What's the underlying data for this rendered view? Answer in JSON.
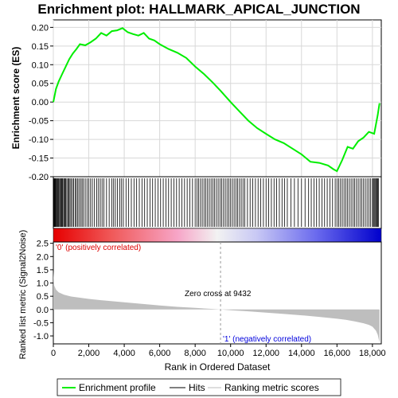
{
  "chart_data": {
    "type": "line",
    "title": "Enrichment plot: HALLMARK_APICAL_JUNCTION",
    "xlabel": "Rank in Ordered Dataset",
    "xlim": [
      0,
      18500
    ],
    "x_ticks": [
      0,
      2000,
      4000,
      6000,
      8000,
      10000,
      12000,
      14000,
      16000,
      18000
    ],
    "x_tick_labels": [
      "0",
      "2,000",
      "4,000",
      "6,000",
      "8,000",
      "10,000",
      "12,000",
      "14,000",
      "16,000",
      "18,000"
    ],
    "es_panel": {
      "ylabel": "Enrichment score (ES)",
      "ylim": [
        -0.2,
        0.22
      ],
      "y_ticks": [
        -0.2,
        -0.15,
        -0.1,
        -0.05,
        0.0,
        0.05,
        0.1,
        0.15,
        0.2
      ],
      "y_tick_labels": [
        "-0.20",
        "-0.15",
        "-0.10",
        "-0.05",
        "0.00",
        "0.05",
        "0.10",
        "0.15",
        "0.20"
      ],
      "grid": true,
      "series": [
        {
          "name": "Enrichment profile",
          "color": "#00ee00",
          "x": [
            0,
            150,
            300,
            500,
            700,
            900,
            1100,
            1300,
            1500,
            1800,
            2100,
            2400,
            2700,
            3000,
            3300,
            3600,
            3900,
            4200,
            4500,
            4800,
            5100,
            5400,
            5700,
            6000,
            6500,
            7000,
            7500,
            8000,
            8500,
            9000,
            9432,
            10000,
            10500,
            11000,
            11500,
            12000,
            12500,
            13000,
            13500,
            14000,
            14500,
            15000,
            15500,
            15800,
            16000,
            16300,
            16600,
            16900,
            17200,
            17500,
            17800,
            18100,
            18300,
            18400
          ],
          "y": [
            0.0,
            0.035,
            0.055,
            0.075,
            0.095,
            0.115,
            0.13,
            0.142,
            0.155,
            0.152,
            0.16,
            0.17,
            0.185,
            0.178,
            0.19,
            0.192,
            0.198,
            0.187,
            0.182,
            0.178,
            0.185,
            0.17,
            0.165,
            0.155,
            0.142,
            0.132,
            0.118,
            0.095,
            0.075,
            0.052,
            0.03,
            0.0,
            -0.025,
            -0.05,
            -0.07,
            -0.085,
            -0.1,
            -0.11,
            -0.125,
            -0.14,
            -0.16,
            -0.163,
            -0.17,
            -0.18,
            -0.185,
            -0.155,
            -0.12,
            -0.125,
            -0.105,
            -0.095,
            -0.08,
            -0.085,
            -0.035,
            -0.003
          ]
        }
      ]
    },
    "hits_panel": {
      "legend_name": "Hits",
      "hit_positions": [
        30,
        60,
        90,
        120,
        160,
        200,
        240,
        280,
        320,
        370,
        420,
        460,
        500,
        540,
        600,
        650,
        700,
        760,
        820,
        880,
        940,
        1000,
        1080,
        1150,
        1230,
        1300,
        1380,
        1450,
        1540,
        1620,
        1700,
        1800,
        1900,
        2000,
        2100,
        2200,
        2320,
        2450,
        2550,
        2650,
        2750,
        2850,
        3000,
        3150,
        3300,
        3400,
        3500,
        3620,
        3750,
        3850,
        3950,
        4100,
        4250,
        4400,
        4550,
        4700,
        4850,
        5000,
        5150,
        5300,
        5450,
        5600,
        5750,
        5900,
        6050,
        6200,
        6350,
        6500,
        6650,
        6800,
        6950,
        7100,
        7250,
        7400,
        7550,
        7700,
        7850,
        8000,
        8100,
        8200,
        8300,
        8400,
        8500,
        8600,
        8700,
        8800,
        8900,
        9000,
        9100,
        9200,
        9300,
        9400,
        9500,
        9600,
        9700,
        9800,
        9900,
        10000,
        10100,
        10200,
        10300,
        10400,
        10500,
        10600,
        10700,
        10800,
        10950,
        11100,
        11250,
        11400,
        11550,
        11700,
        11850,
        12000,
        12150,
        12300,
        12450,
        12600,
        12750,
        12900,
        13050,
        13200,
        13400,
        13600,
        13800,
        14000,
        14200,
        14400,
        14550,
        14700,
        14850,
        15000,
        15150,
        15300,
        15450,
        15600,
        15750,
        15900,
        16000,
        16100,
        16200,
        16300,
        16400,
        16500,
        16600,
        16700,
        16800,
        16900,
        17000,
        17100,
        17200,
        17300,
        17400,
        17500,
        17600,
        17700,
        17800,
        17900,
        18000,
        18050,
        18100,
        18150,
        18200,
        18250,
        18300,
        18350
      ]
    },
    "rank_panel": {
      "legend_name": "Ranking metric scores",
      "ylabel": "Ranked list metric (Signal2Noise)",
      "ylim": [
        -1.3,
        2.55
      ],
      "y_ticks": [
        -1.0,
        -0.5,
        0.0,
        0.5,
        1.0,
        1.5,
        2.0,
        2.5
      ],
      "y_tick_labels": [
        "-1.0",
        "-0.5",
        "0.0",
        "0.5",
        "1.0",
        "1.5",
        "2.0",
        "2.5"
      ],
      "profile_x": [
        0,
        50,
        150,
        300,
        600,
        1000,
        2000,
        3000,
        4000,
        5000,
        6000,
        7000,
        8000,
        9000,
        9432,
        10000,
        11000,
        12000,
        13000,
        14000,
        15000,
        16000,
        16500,
        17000,
        17500,
        17800,
        18000,
        18200,
        18300,
        18400
      ],
      "profile_y": [
        1.45,
        0.9,
        0.75,
        0.65,
        0.56,
        0.49,
        0.4,
        0.33,
        0.27,
        0.21,
        0.15,
        0.1,
        0.06,
        0.02,
        0.0,
        -0.03,
        -0.07,
        -0.12,
        -0.17,
        -0.22,
        -0.28,
        -0.35,
        -0.39,
        -0.45,
        -0.52,
        -0.58,
        -0.65,
        -0.8,
        -0.95,
        -1.25
      ],
      "fill_color": "#bebebe",
      "zero_cross_text": "Zero cross at 9432",
      "zero_cross_rank": 9432,
      "positive_label": "'0' (positively correlated)",
      "positive_color": "#dd0000",
      "negative_label": "'1' (negatively correlated)",
      "negative_color": "#0000dd"
    },
    "legend": {
      "placement": "bottom",
      "items": [
        {
          "label": "Enrichment profile",
          "color": "#00ee00"
        },
        {
          "label": "Hits",
          "color": "#000000"
        },
        {
          "label": "Ranking metric scores",
          "color": "#bebebe"
        }
      ]
    }
  }
}
